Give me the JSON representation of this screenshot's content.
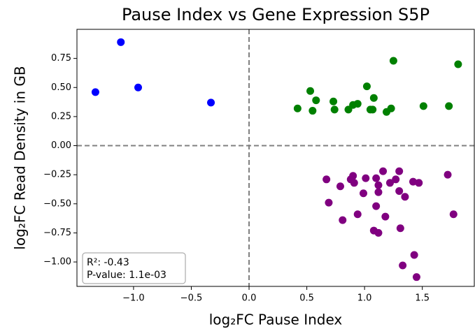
{
  "chart_data": {
    "type": "scatter",
    "title": "Pause Index vs Gene Expression S5P",
    "xlabel": "log₂FC Pause Index",
    "ylabel": "log₂FC Read Density in GB",
    "xlim": [
      -1.49,
      1.95
    ],
    "ylim": [
      -1.21,
      1.0
    ],
    "xticks": [
      {
        "value": -1.0,
        "label": "−1.0"
      },
      {
        "value": -0.5,
        "label": "−0.5"
      },
      {
        "value": 0,
        "label": "0.0"
      },
      0.5,
      {
        "value": 1,
        "label": "1.0"
      },
      1.5
    ],
    "yticks": [
      {
        "value": -1.0,
        "label": "−1.00"
      },
      {
        "value": -0.75,
        "label": "−0.75"
      },
      {
        "value": -0.5,
        "label": "−0.50"
      },
      {
        "value": -0.25,
        "label": "−0.25"
      },
      {
        "value": 0,
        "label": "0.00"
      },
      0.25,
      {
        "value": 0.5,
        "label": "0.50"
      },
      0.75
    ],
    "reference_lines": {
      "x": 0,
      "y": 0
    },
    "annotations": [
      "R²: -0.43",
      "P-value: 1.1e-03"
    ],
    "series": [
      {
        "color": "#0000ff",
        "x": [
          -1.33,
          -1.11,
          -0.96,
          -0.33
        ],
        "y": [
          0.46,
          0.89,
          0.5,
          0.37
        ]
      },
      {
        "color": "#008000",
        "x": [
          0.42,
          0.53,
          0.55,
          0.58,
          0.73,
          0.74,
          0.86,
          0.9,
          0.94,
          1.02,
          1.05,
          1.07,
          1.08,
          1.19,
          1.23,
          1.25,
          1.51,
          1.73,
          1.81
        ],
        "y": [
          0.32,
          0.47,
          0.3,
          0.39,
          0.38,
          0.31,
          0.31,
          0.35,
          0.36,
          0.51,
          0.31,
          0.31,
          0.41,
          0.29,
          0.32,
          0.73,
          0.34,
          0.34,
          0.7
        ]
      },
      {
        "color": "#800080",
        "x": [
          0.67,
          0.69,
          0.79,
          0.81,
          0.88,
          0.9,
          0.91,
          0.94,
          0.99,
          1.01,
          1.08,
          1.1,
          1.1,
          1.12,
          1.12,
          1.12,
          1.16,
          1.18,
          1.22,
          1.27,
          1.3,
          1.3,
          1.31,
          1.33,
          1.35,
          1.42,
          1.43,
          1.45,
          1.47,
          1.72,
          1.77
        ],
        "y": [
          -0.29,
          -0.49,
          -0.35,
          -0.64,
          -0.29,
          -0.26,
          -0.32,
          -0.59,
          -0.41,
          -0.28,
          -0.73,
          -0.52,
          -0.28,
          -0.34,
          -0.75,
          -0.4,
          -0.22,
          -0.61,
          -0.32,
          -0.29,
          -0.22,
          -0.39,
          -0.71,
          -1.03,
          -0.44,
          -0.31,
          -0.94,
          -1.13,
          -0.32,
          -0.25,
          -0.59
        ]
      }
    ]
  }
}
